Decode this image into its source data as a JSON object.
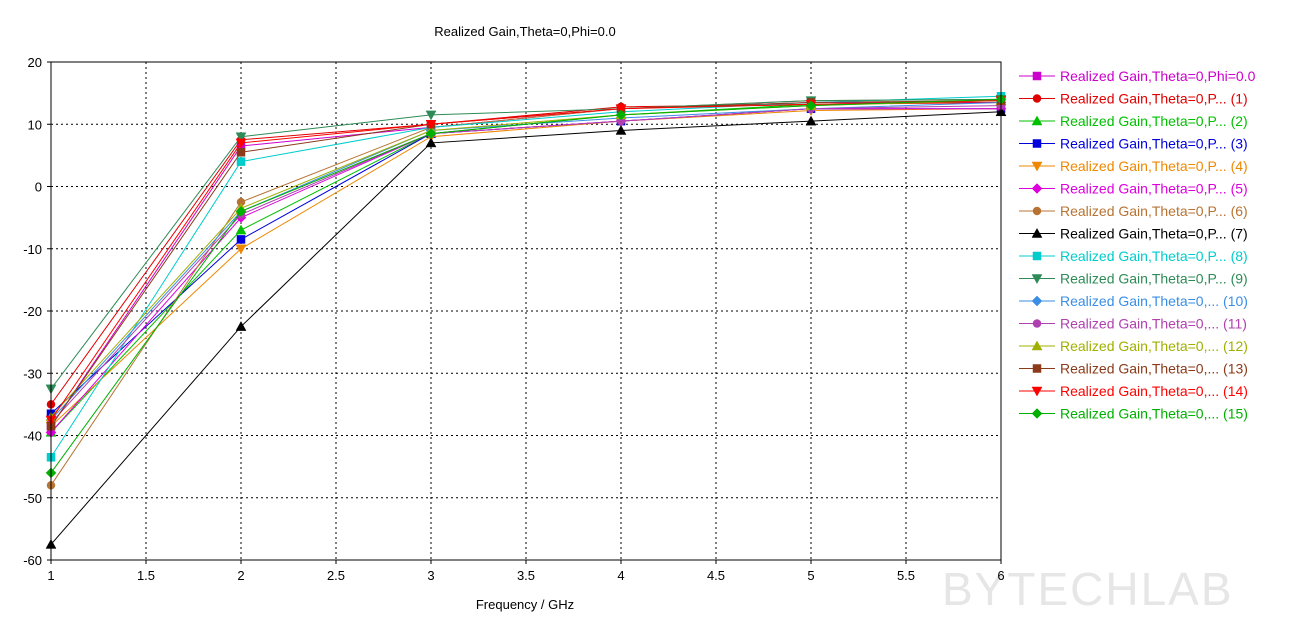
{
  "chart_data": {
    "type": "line",
    "title": "Realized Gain,Theta=0,Phi=0.0",
    "xlabel": "Frequency / GHz",
    "ylabel": "",
    "xlim": [
      1,
      6
    ],
    "ylim": [
      -60,
      20
    ],
    "xticks": [
      "1",
      "1.5",
      "2",
      "2.5",
      "3",
      "3.5",
      "4",
      "4.5",
      "5",
      "5.5",
      "6"
    ],
    "yticks": [
      "20",
      "10",
      "0",
      "-10",
      "-20",
      "-30",
      "-40",
      "-50",
      "-60"
    ],
    "grid": true,
    "legend_position": "right",
    "x": [
      1,
      2,
      3,
      4,
      5,
      6
    ],
    "series": [
      {
        "name": "Realized Gain,Theta=0,Phi=0.0",
        "color": "#cc00cc",
        "marker": "square",
        "values": [
          -38.5,
          6.5,
          9.5,
          12.5,
          13.5,
          13.5
        ]
      },
      {
        "name": "Realized Gain,Theta=0,P... (1)",
        "color": "#e00000",
        "marker": "circle",
        "values": [
          -35,
          7.5,
          10,
          12.8,
          13.2,
          13.5
        ]
      },
      {
        "name": "Realized Gain,Theta=0,P... (2)",
        "color": "#00c000",
        "marker": "triangle-up",
        "values": [
          -39.5,
          -7,
          8.5,
          11.5,
          13.2,
          13.8
        ]
      },
      {
        "name": "Realized Gain,Theta=0,P... (3)",
        "color": "#0000dd",
        "marker": "square",
        "values": [
          -36.5,
          -8.5,
          8.5,
          10.5,
          12.5,
          12.5
        ]
      },
      {
        "name": "Realized Gain,Theta=0,P... (4)",
        "color": "#ee8800",
        "marker": "triangle-down",
        "values": [
          -38.5,
          -10,
          8,
          10.5,
          12.2,
          12.5
        ]
      },
      {
        "name": "Realized Gain,Theta=0,P... (5)",
        "color": "#dd00dd",
        "marker": "diamond",
        "values": [
          -39.5,
          -5,
          8.5,
          10.5,
          12.5,
          12.5
        ]
      },
      {
        "name": "Realized Gain,Theta=0,P... (6)",
        "color": "#b87333",
        "marker": "circle",
        "values": [
          -48,
          -2.5,
          9.5,
          12.5,
          13.8,
          14
        ]
      },
      {
        "name": "Realized Gain,Theta=0,P... (7)",
        "color": "#000000",
        "marker": "triangle-up",
        "values": [
          -57.5,
          -22.5,
          7,
          9,
          10.5,
          12
        ]
      },
      {
        "name": "Realized Gain,Theta=0,P... (8)",
        "color": "#00cccc",
        "marker": "square",
        "values": [
          -43.5,
          4,
          9.5,
          12,
          13.5,
          14.5
        ]
      },
      {
        "name": "Realized Gain,Theta=0,P... (9)",
        "color": "#2e8b57",
        "marker": "triangle-down",
        "values": [
          -32.5,
          8,
          11.5,
          12.5,
          13.8,
          14
        ]
      },
      {
        "name": "Realized Gain,Theta=0,... (10)",
        "color": "#3a8ee6",
        "marker": "diamond",
        "values": [
          -37.5,
          -4,
          9,
          11,
          12.5,
          13.5
        ]
      },
      {
        "name": "Realized Gain,Theta=0,... (11)",
        "color": "#b040b0",
        "marker": "circle",
        "values": [
          -38,
          -4.5,
          8.5,
          10.5,
          12.5,
          13
        ]
      },
      {
        "name": "Realized Gain,Theta=0,... (12)",
        "color": "#a0b000",
        "marker": "triangle-up",
        "values": [
          -37,
          -3.5,
          9,
          11.5,
          13,
          13.8
        ]
      },
      {
        "name": "Realized Gain,Theta=0,... (13)",
        "color": "#8b3a1a",
        "marker": "square",
        "values": [
          -38.5,
          5.5,
          10,
          12.5,
          13.5,
          13.8
        ]
      },
      {
        "name": "Realized Gain,Theta=0,... (14)",
        "color": "#ff0000",
        "marker": "triangle-down",
        "values": [
          -37.5,
          7,
          10,
          12.5,
          13.2,
          13.8
        ]
      },
      {
        "name": "Realized Gain,Theta=0,... (15)",
        "color": "#00b000",
        "marker": "diamond",
        "values": [
          -46,
          -4,
          8.5,
          11.5,
          13,
          14
        ]
      }
    ]
  },
  "watermark": "BYTECHLAB"
}
